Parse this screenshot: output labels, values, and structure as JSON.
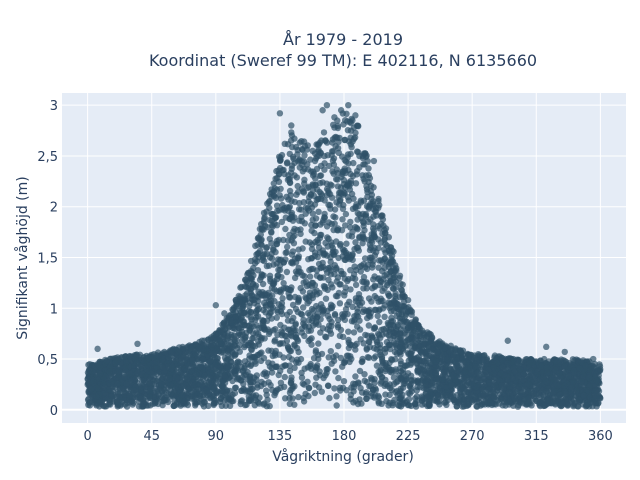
{
  "chart_data": {
    "type": "scatter",
    "title_line1": "År 1979 - 2019",
    "title_line2": "Koordinat (Sweref 99 TM): E 402116, N 6135660",
    "xlabel": "Vågriktning (grader)",
    "ylabel": "Signifikant våghöjd (m)",
    "xlim": [
      -18,
      378
    ],
    "ylim": [
      -0.13,
      3.12
    ],
    "xticks": [
      0,
      45,
      90,
      135,
      180,
      225,
      270,
      315,
      360
    ],
    "xtick_labels": [
      "0",
      "45",
      "90",
      "135",
      "180",
      "225",
      "270",
      "315",
      "360"
    ],
    "yticks": [
      0,
      0.5,
      1,
      1.5,
      2,
      2.5,
      3
    ],
    "ytick_labels": [
      "0",
      "0,5",
      "1",
      "1,5",
      "2",
      "2,5",
      "3"
    ],
    "grid": true,
    "colors": {
      "marker": "#2f5168",
      "plot_bg": "#e5ecf6",
      "grid": "#ffffff",
      "text": "#2a3f5f"
    },
    "envelope": {
      "x": [
        0,
        15,
        30,
        45,
        60,
        75,
        90,
        100,
        110,
        120,
        130,
        135,
        140,
        150,
        160,
        170,
        180,
        190,
        200,
        210,
        220,
        225,
        230,
        240,
        250,
        260,
        270,
        280,
        300,
        315,
        330,
        345,
        360
      ],
      "upper_y": [
        0.45,
        0.5,
        0.55,
        0.55,
        0.6,
        0.65,
        0.75,
        0.95,
        1.3,
        1.75,
        2.25,
        2.6,
        2.75,
        2.7,
        2.6,
        2.85,
        2.95,
        2.8,
        2.3,
        1.8,
        1.3,
        1.05,
        0.9,
        0.75,
        0.65,
        0.6,
        0.55,
        0.55,
        0.5,
        0.5,
        0.5,
        0.5,
        0.45
      ]
    },
    "lower_bound": 0.03,
    "points": [
      {
        "x": 7,
        "y": 0.6
      },
      {
        "x": 35,
        "y": 0.65
      },
      {
        "x": 90,
        "y": 1.03
      },
      {
        "x": 135,
        "y": 2.92
      },
      {
        "x": 143,
        "y": 2.8
      },
      {
        "x": 165,
        "y": 2.95
      },
      {
        "x": 168,
        "y": 3.0
      },
      {
        "x": 178,
        "y": 2.95
      },
      {
        "x": 183,
        "y": 3.0
      },
      {
        "x": 188,
        "y": 2.9
      },
      {
        "x": 158,
        "y": 2.55
      },
      {
        "x": 201,
        "y": 2.45
      },
      {
        "x": 240,
        "y": 0.75
      },
      {
        "x": 255,
        "y": 0.63
      },
      {
        "x": 295,
        "y": 0.68
      },
      {
        "x": 322,
        "y": 0.62
      },
      {
        "x": 335,
        "y": 0.57
      },
      {
        "x": 355,
        "y": 0.5
      },
      {
        "x": 96,
        "y": 0.95
      },
      {
        "x": 225,
        "y": 1.08
      }
    ]
  }
}
